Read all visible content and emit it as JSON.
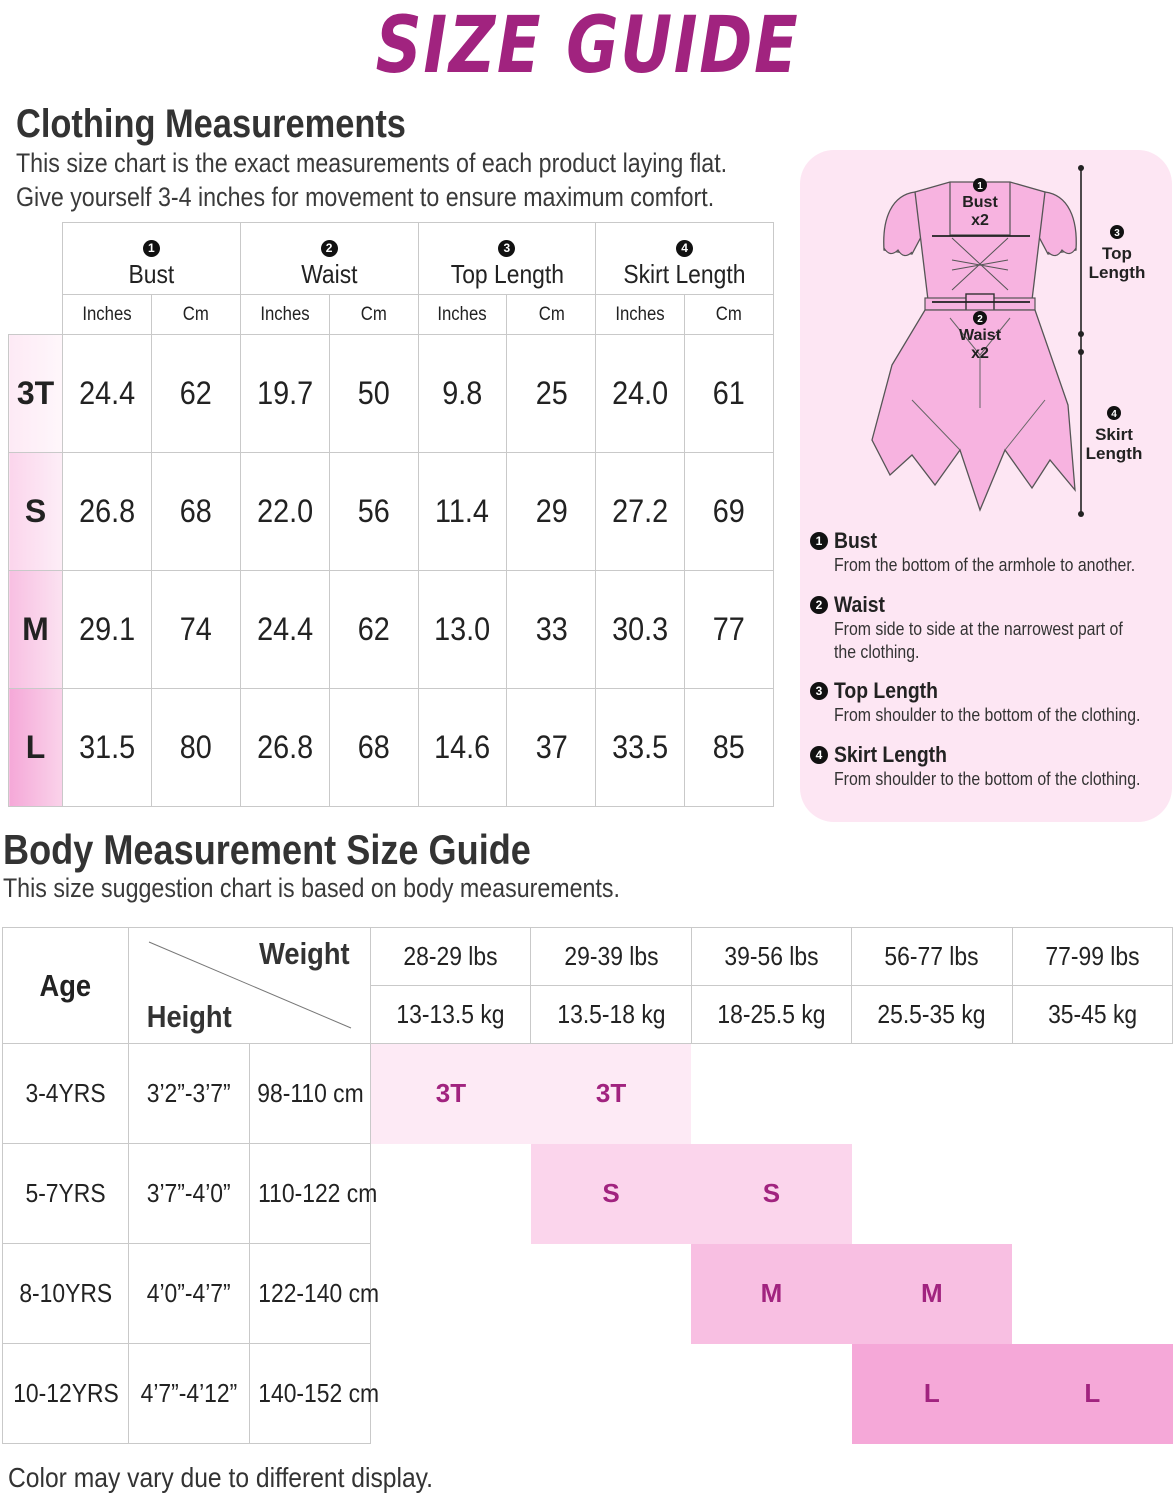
{
  "title": "SIZE GUIDE",
  "clothing": {
    "title": "Clothing Measurements",
    "sub1": "This size chart is the exact measurements of each product laying flat.",
    "sub2": "Give yourself 3-4 inches for movement to ensure maximum comfort.",
    "measures": [
      {
        "num": "1",
        "label": "Bust"
      },
      {
        "num": "2",
        "label": "Waist"
      },
      {
        "num": "3",
        "label": "Top Length"
      },
      {
        "num": "4",
        "label": "Skirt Length"
      }
    ],
    "units": [
      "Inches",
      "Cm"
    ],
    "rows": [
      {
        "size": "3T",
        "values": [
          "24.4",
          "62",
          "19.7",
          "50",
          "9.8",
          "25",
          "24.0",
          "61"
        ]
      },
      {
        "size": "S",
        "values": [
          "26.8",
          "68",
          "22.0",
          "56",
          "11.4",
          "29",
          "27.2",
          "69"
        ]
      },
      {
        "size": "M",
        "values": [
          "29.1",
          "74",
          "24.4",
          "62",
          "13.0",
          "33",
          "30.3",
          "77"
        ]
      },
      {
        "size": "L",
        "values": [
          "31.5",
          "80",
          "26.8",
          "68",
          "14.6",
          "37",
          "33.5",
          "85"
        ]
      }
    ]
  },
  "diagram": {
    "bust": {
      "num": "1",
      "line1": "Bust",
      "line2": "x2"
    },
    "waist": {
      "num": "2",
      "line1": "Waist",
      "line2": "x2"
    },
    "top": {
      "num": "3",
      "line1": "Top",
      "line2": "Length"
    },
    "skirt": {
      "num": "4",
      "line1": "Skirt",
      "line2": "Length"
    },
    "dress_color": "#f7b3e0",
    "descriptions": [
      {
        "num": "1",
        "title": "Bust",
        "lines": [
          "From the bottom of the armhole to another."
        ]
      },
      {
        "num": "2",
        "title": "Waist",
        "lines": [
          "From side to side at the narrowest part of",
          "the clothing."
        ]
      },
      {
        "num": "3",
        "title": "Top Length",
        "lines": [
          "From shoulder to the bottom of the clothing."
        ]
      },
      {
        "num": "4",
        "title": "Skirt Length",
        "lines": [
          "From shoulder to the bottom of the clothing."
        ]
      }
    ]
  },
  "body": {
    "title": "Body Measurement Size Guide",
    "sub": "This size suggestion chart is based on body measurements.",
    "age_label": "Age",
    "weight_label": "Weight",
    "height_label": "Height",
    "weights_lbs": [
      "28-29 lbs",
      "29-39 lbs",
      "39-56 lbs",
      "56-77 lbs",
      "77-99 lbs"
    ],
    "weights_kg": [
      "13-13.5 kg",
      "13.5-18 kg",
      "18-25.5 kg",
      "25.5-35 kg",
      "35-45 kg"
    ],
    "rows": [
      {
        "age": "3-4YRS",
        "height_ft": "3’2”-3’7”",
        "height_cm": "98-110 cm",
        "sizes": [
          "3T",
          "3T",
          "",
          "",
          ""
        ]
      },
      {
        "age": "5-7YRS",
        "height_ft": "3’7”-4’0”",
        "height_cm": "110-122 cm",
        "sizes": [
          "",
          "S",
          "S",
          "",
          ""
        ]
      },
      {
        "age": "8-10YRS",
        "height_ft": "4’0”-4’7”",
        "height_cm": "122-140 cm",
        "sizes": [
          "",
          "",
          "M",
          "M",
          ""
        ]
      },
      {
        "age": "10-12YRS",
        "height_ft": "4’7”-4’12”",
        "height_cm": "140-152 cm",
        "sizes": [
          "",
          "",
          "",
          "L",
          "L"
        ]
      }
    ]
  },
  "footer": "Color may vary due to different display.",
  "colors": {
    "accent": "#a1237f",
    "panel": "#fde6f3"
  }
}
